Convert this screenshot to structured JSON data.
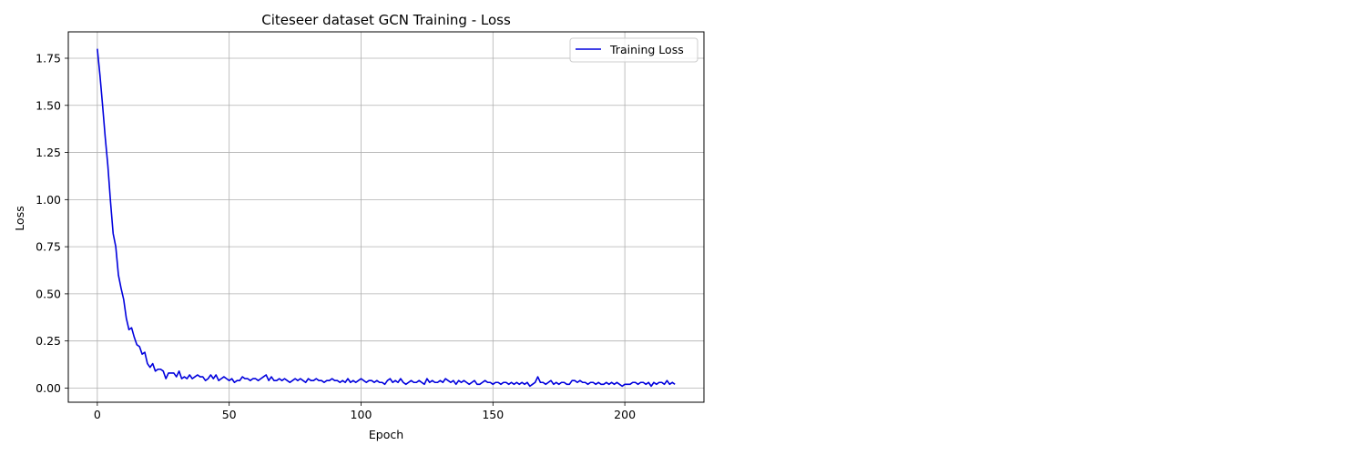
{
  "chart_data": {
    "type": "line",
    "title": "Citeseer dataset GCN Training - Loss",
    "xlabel": "Epoch",
    "ylabel": "Loss",
    "xlim": [
      -11,
      230
    ],
    "ylim": [
      -0.075,
      1.89
    ],
    "xticks": [
      0,
      50,
      100,
      150,
      200
    ],
    "yticks": [
      0.0,
      0.25,
      0.5,
      0.75,
      1.0,
      1.25,
      1.5,
      1.75
    ],
    "xtick_labels": [
      "0",
      "50",
      "100",
      "150",
      "200"
    ],
    "ytick_labels": [
      "0.00",
      "0.25",
      "0.50",
      "0.75",
      "1.00",
      "1.25",
      "1.50",
      "1.75"
    ],
    "grid": true,
    "legend": {
      "position": "top-right",
      "entries": [
        "Training Loss"
      ]
    },
    "series": [
      {
        "name": "Training Loss",
        "color": "#0000dd",
        "x_start": 0,
        "x_step": 1,
        "values": [
          1.8,
          1.66,
          1.5,
          1.33,
          1.18,
          0.99,
          0.82,
          0.75,
          0.6,
          0.53,
          0.47,
          0.37,
          0.31,
          0.32,
          0.27,
          0.23,
          0.22,
          0.18,
          0.19,
          0.13,
          0.11,
          0.13,
          0.09,
          0.1,
          0.1,
          0.09,
          0.05,
          0.08,
          0.08,
          0.08,
          0.06,
          0.09,
          0.05,
          0.06,
          0.05,
          0.07,
          0.05,
          0.06,
          0.07,
          0.06,
          0.06,
          0.04,
          0.05,
          0.07,
          0.05,
          0.07,
          0.04,
          0.05,
          0.06,
          0.05,
          0.04,
          0.05,
          0.03,
          0.04,
          0.04,
          0.06,
          0.05,
          0.05,
          0.04,
          0.05,
          0.05,
          0.04,
          0.05,
          0.06,
          0.07,
          0.04,
          0.06,
          0.04,
          0.04,
          0.05,
          0.04,
          0.05,
          0.04,
          0.03,
          0.04,
          0.05,
          0.04,
          0.05,
          0.04,
          0.03,
          0.05,
          0.04,
          0.04,
          0.05,
          0.04,
          0.04,
          0.03,
          0.04,
          0.04,
          0.05,
          0.04,
          0.04,
          0.03,
          0.04,
          0.03,
          0.05,
          0.03,
          0.04,
          0.03,
          0.04,
          0.05,
          0.04,
          0.03,
          0.04,
          0.04,
          0.03,
          0.04,
          0.03,
          0.03,
          0.02,
          0.04,
          0.05,
          0.03,
          0.04,
          0.03,
          0.05,
          0.03,
          0.02,
          0.03,
          0.04,
          0.03,
          0.03,
          0.04,
          0.03,
          0.02,
          0.05,
          0.03,
          0.04,
          0.03,
          0.03,
          0.04,
          0.03,
          0.05,
          0.04,
          0.03,
          0.04,
          0.02,
          0.04,
          0.03,
          0.04,
          0.03,
          0.02,
          0.03,
          0.04,
          0.02,
          0.02,
          0.03,
          0.04,
          0.03,
          0.03,
          0.02,
          0.03,
          0.03,
          0.02,
          0.03,
          0.03,
          0.02,
          0.03,
          0.02,
          0.03,
          0.02,
          0.03,
          0.02,
          0.03,
          0.01,
          0.02,
          0.03,
          0.06,
          0.03,
          0.03,
          0.02,
          0.03,
          0.04,
          0.02,
          0.03,
          0.02,
          0.03,
          0.03,
          0.02,
          0.02,
          0.04,
          0.04,
          0.03,
          0.04,
          0.03,
          0.03,
          0.02,
          0.03,
          0.03,
          0.02,
          0.03,
          0.02,
          0.02,
          0.03,
          0.02,
          0.03,
          0.02,
          0.03,
          0.02,
          0.01,
          0.02,
          0.02,
          0.02,
          0.03,
          0.03,
          0.02,
          0.03,
          0.03,
          0.02,
          0.03,
          0.01,
          0.03,
          0.02,
          0.03,
          0.03,
          0.02,
          0.04,
          0.02,
          0.03,
          0.02
        ]
      }
    ]
  }
}
